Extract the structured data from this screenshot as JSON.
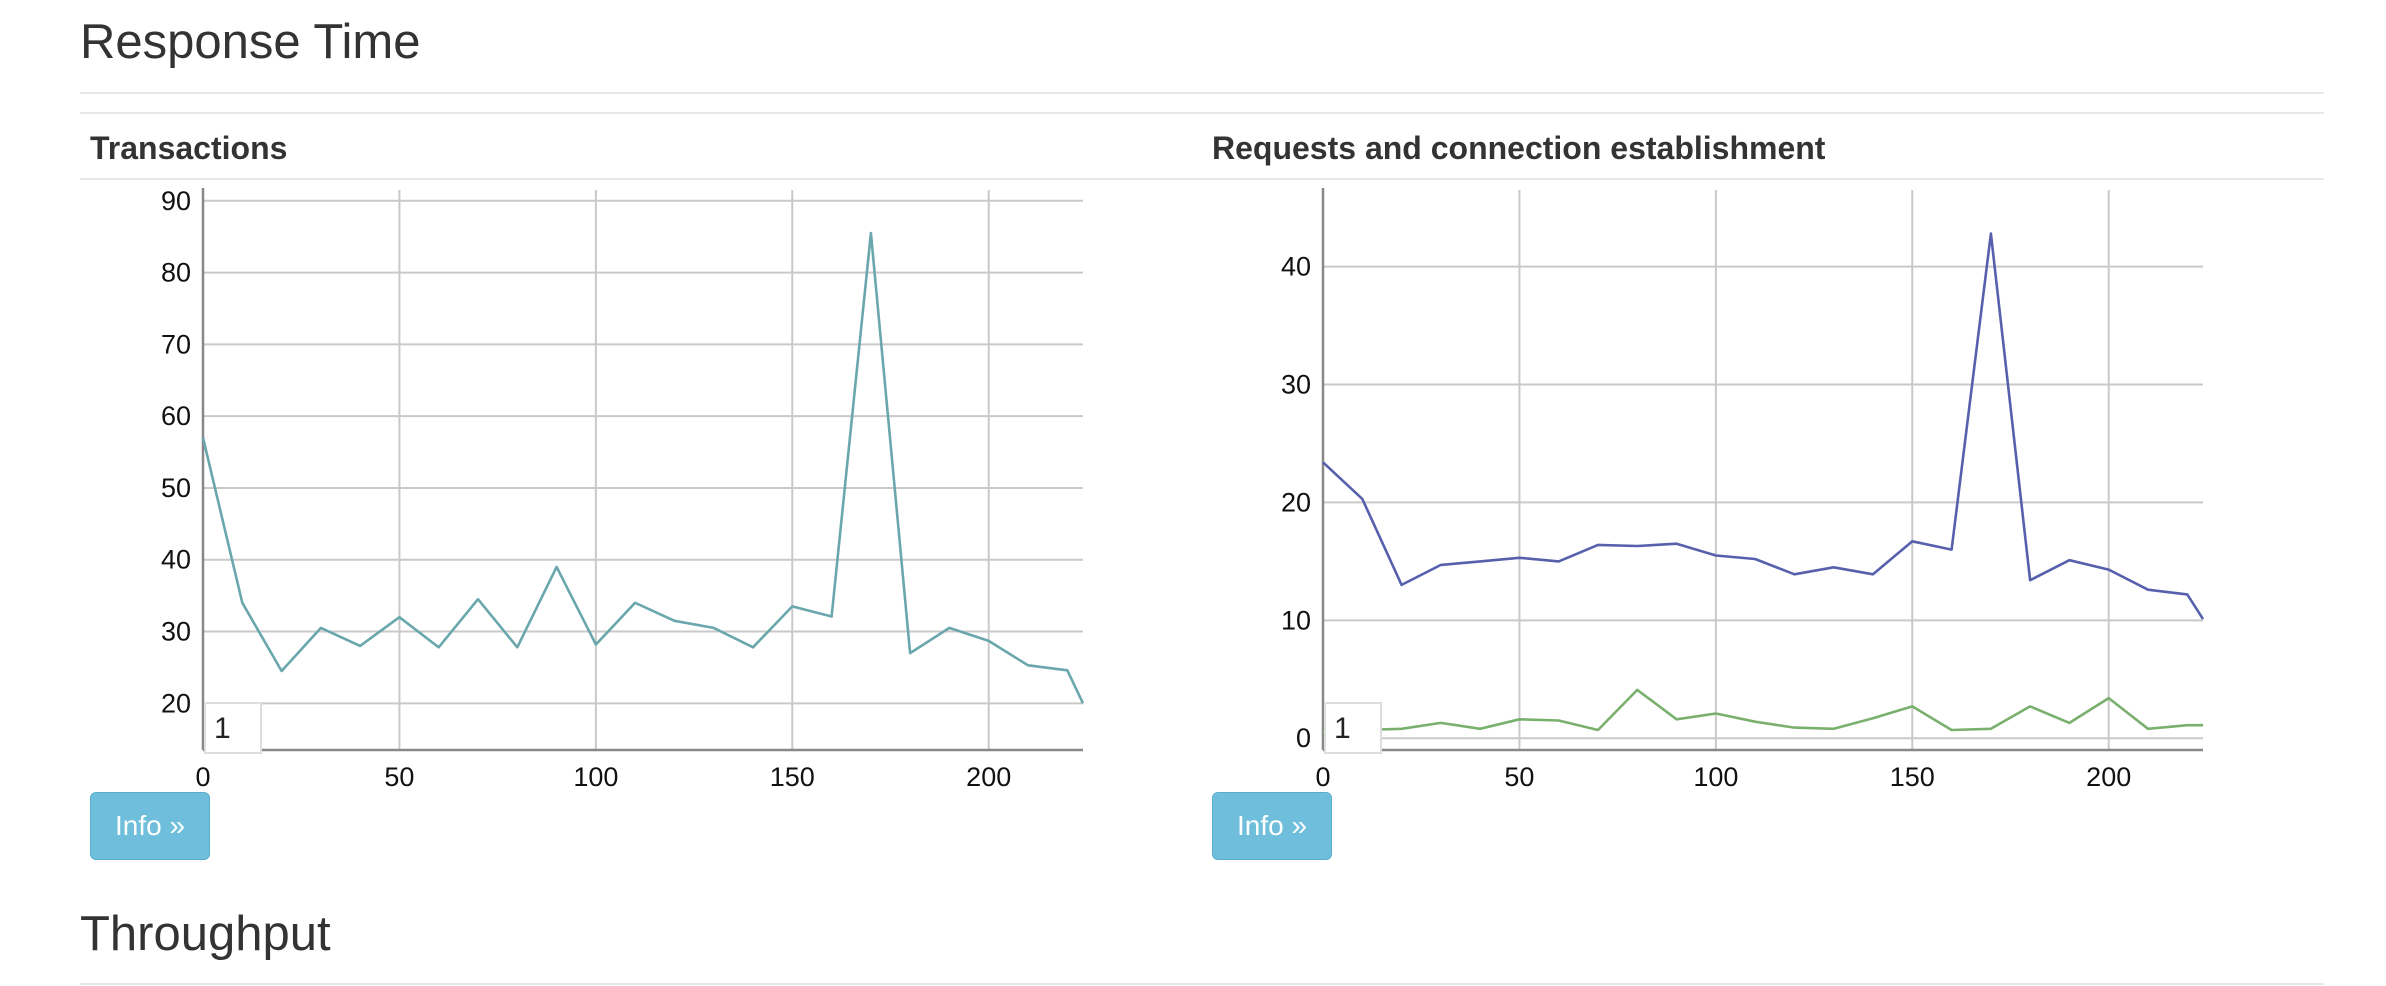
{
  "sections": [
    {
      "title": "Response Time"
    },
    {
      "title": "Throughput"
    }
  ],
  "panels": [
    {
      "title": "Transactions",
      "info_label": "Info »",
      "range_value": "1"
    },
    {
      "title": "Requests and connection establishment",
      "info_label": "Info »",
      "range_value": "1"
    }
  ],
  "colors": {
    "transactions_line": "#6aa7ad",
    "requests_line": "#5760ac",
    "connection_line": "#7ab06e",
    "info_button": "#6fbfdc"
  },
  "chart_data": [
    {
      "type": "line",
      "title": "Transactions",
      "xlabel": "",
      "ylabel": "",
      "xlim": [
        0,
        224
      ],
      "ylim": [
        13.5,
        91.5
      ],
      "xticks": [
        0,
        50,
        100,
        150,
        200
      ],
      "yticks": [
        20,
        30,
        40,
        50,
        60,
        70,
        80,
        90
      ],
      "grid": true,
      "series": [
        {
          "color": "#6aa7ad",
          "x": [
            0,
            10,
            20,
            30,
            40,
            50,
            60,
            70,
            80,
            90,
            100,
            110,
            120,
            130,
            140,
            150,
            160,
            170,
            180,
            190,
            200,
            210,
            220,
            224
          ],
          "y": [
            57,
            34,
            24.5,
            30.5,
            28,
            32,
            27.8,
            34.5,
            27.8,
            39,
            28.2,
            34,
            31.5,
            30.5,
            27.8,
            33.5,
            32.1,
            85.5,
            27,
            30.5,
            28.7,
            25.3,
            24.6,
            20
          ]
        }
      ]
    },
    {
      "type": "line",
      "title": "Requests and connection establishment",
      "xlabel": "",
      "ylabel": "",
      "xlim": [
        0,
        224
      ],
      "ylim": [
        -1,
        46.5
      ],
      "xticks": [
        0,
        50,
        100,
        150,
        200
      ],
      "yticks": [
        0,
        10,
        20,
        30,
        40
      ],
      "grid": true,
      "series": [
        {
          "color": "#5760ac",
          "x": [
            0,
            10,
            20,
            30,
            40,
            50,
            60,
            70,
            80,
            90,
            100,
            110,
            120,
            130,
            140,
            150,
            160,
            170,
            180,
            190,
            200,
            210,
            220,
            224
          ],
          "y": [
            23.4,
            20.3,
            13,
            14.7,
            15,
            15.3,
            15,
            16.4,
            16.3,
            16.5,
            15.5,
            15.2,
            13.9,
            14.5,
            13.9,
            16.7,
            16,
            42.8,
            13.4,
            15.1,
            14.3,
            12.6,
            12.2,
            10.1
          ]
        },
        {
          "color": "#7ab06e",
          "x": [
            0,
            10,
            20,
            30,
            40,
            50,
            60,
            70,
            80,
            90,
            100,
            110,
            120,
            130,
            140,
            150,
            160,
            170,
            180,
            190,
            200,
            210,
            220,
            224
          ],
          "y": [
            0.5,
            0.7,
            0.8,
            1.3,
            0.8,
            1.6,
            1.5,
            0.7,
            4.1,
            1.6,
            2.1,
            1.4,
            0.9,
            0.8,
            1.7,
            2.7,
            0.7,
            0.8,
            2.7,
            1.3,
            3.4,
            0.8,
            1.1,
            1.1
          ]
        }
      ]
    }
  ]
}
